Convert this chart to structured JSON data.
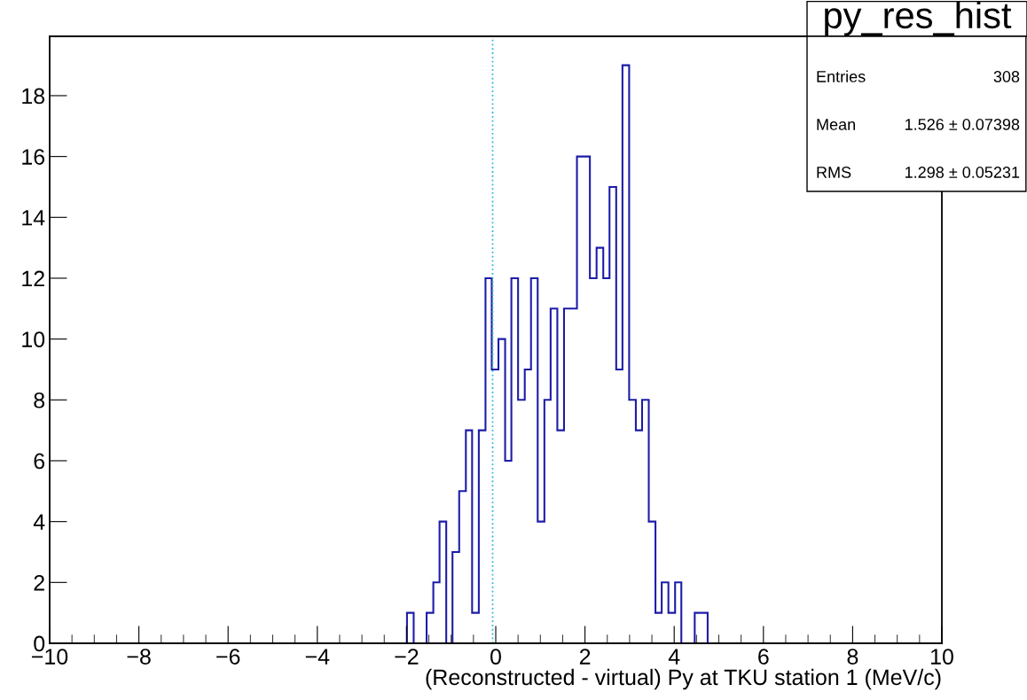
{
  "chart_data": {
    "type": "histogram",
    "title": "py_res_hist",
    "xlabel": "(Reconstructed - virtual) Py at TKU station 1 (MeV/c)",
    "bins": [
      -1.99,
      -1.84,
      -1.7,
      -1.55,
      -1.4,
      -1.26,
      -1.11,
      -0.97,
      -0.82,
      -0.67,
      -0.53,
      -0.38,
      -0.23,
      -0.09,
      0.06,
      0.21,
      0.35,
      0.5,
      0.65,
      0.79,
      0.94,
      1.09,
      1.23,
      1.38,
      1.53,
      1.67,
      1.82,
      1.97,
      2.11,
      2.26,
      2.41,
      2.55,
      2.7,
      2.84,
      2.99,
      3.14,
      3.28,
      3.43,
      3.58,
      3.72,
      3.87,
      4.02,
      4.16,
      4.31,
      4.46,
      4.6,
      4.75
    ],
    "values": [
      1,
      0,
      0,
      1,
      2,
      4,
      0,
      3,
      5,
      7,
      1,
      7,
      12,
      9,
      10,
      6,
      12,
      8,
      9,
      12,
      4,
      8,
      11,
      7,
      11,
      11,
      16,
      16,
      12,
      13,
      12,
      15,
      9,
      19,
      8,
      7,
      8,
      4,
      1,
      2,
      1,
      2,
      0,
      0,
      1,
      1
    ],
    "color": "#1c1ca8",
    "xlim": [
      -10,
      10
    ],
    "xticks": [
      {
        "value": -10,
        "label": "−10"
      },
      {
        "value": -8,
        "label": "−8"
      },
      {
        "value": -6,
        "label": "−6"
      },
      {
        "value": -4,
        "label": "−4"
      },
      {
        "value": -2,
        "label": "−2"
      },
      0,
      2,
      4,
      6,
      8,
      10
    ],
    "ylim": [
      0,
      19.95
    ],
    "yticks": [
      0,
      2,
      4,
      6,
      8,
      10,
      12,
      14,
      16,
      18
    ],
    "ref_lines": [
      {
        "axis": "x",
        "value": -0.07,
        "color": "#33b8e0",
        "line_style": "dotted"
      }
    ],
    "annotations": [
      "Entries",
      "308",
      "Mean",
      "1.526 ± 0.07398",
      "RMS",
      "1.298 ± 0.05231"
    ],
    "grid": false,
    "legend": false
  }
}
